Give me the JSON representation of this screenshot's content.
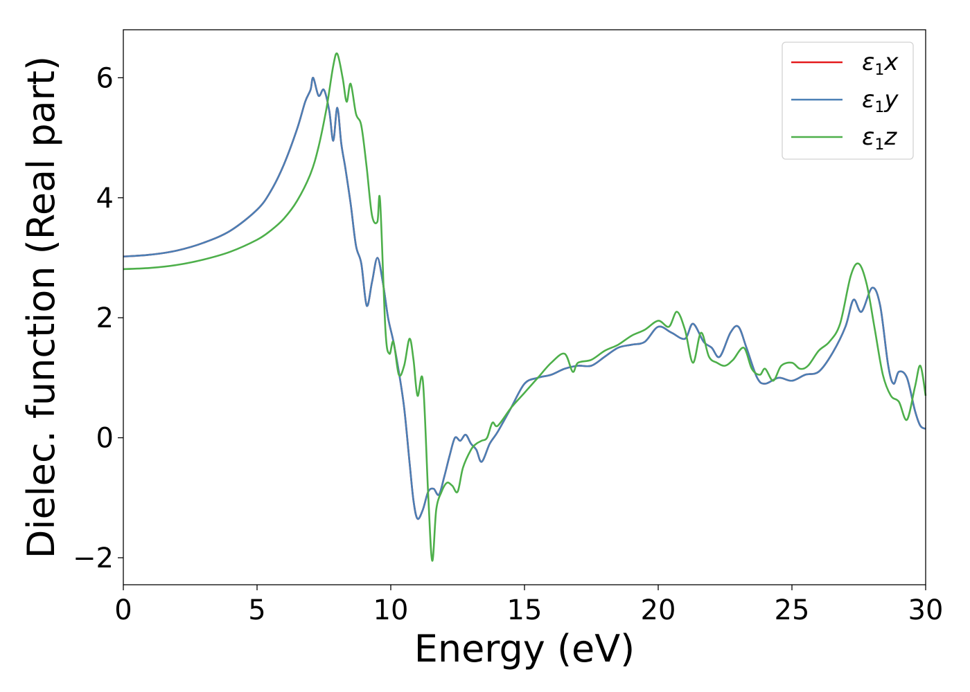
{
  "chart_data": {
    "type": "line",
    "xlabel": "Energy (eV)",
    "ylabel": "Dielec. function (Real part)",
    "xlim": [
      0,
      30
    ],
    "ylim": [
      -2.45,
      6.8
    ],
    "xticks": [
      0,
      5,
      10,
      15,
      20,
      25,
      30
    ],
    "yticks": [
      -2,
      0,
      2,
      4,
      6
    ],
    "xtick_labels": [
      "0",
      "5",
      "10",
      "15",
      "20",
      "25",
      "30"
    ],
    "ytick_labels": [
      "−2",
      "0",
      "2",
      "4",
      "6"
    ],
    "grid": false,
    "legend_position": "top-right",
    "series": [
      {
        "name": "ε1x",
        "legend": {
          "symbol": "ε",
          "sub": "1",
          "suffix": "x"
        },
        "color": "#e41a1c",
        "x": [
          0,
          1,
          2,
          3,
          4,
          5,
          5.5,
          6,
          6.5,
          6.8,
          7.0,
          7.1,
          7.3,
          7.5,
          7.7,
          7.85,
          8.0,
          8.15,
          8.3,
          8.5,
          8.7,
          8.9,
          9.1,
          9.3,
          9.5,
          9.7,
          9.9,
          10.1,
          10.3,
          10.5,
          10.7,
          10.85,
          11.0,
          11.2,
          11.4,
          11.6,
          11.8,
          12.0,
          12.2,
          12.4,
          12.6,
          12.8,
          13.0,
          13.2,
          13.4,
          13.7,
          14.0,
          14.5,
          15.0,
          15.5,
          16.0,
          16.5,
          17.0,
          17.5,
          18.0,
          18.5,
          19.0,
          19.5,
          20.0,
          20.5,
          21.0,
          21.3,
          21.7,
          22.0,
          22.3,
          22.7,
          23.0,
          23.3,
          23.7,
          24.0,
          24.5,
          25.0,
          25.5,
          26.0,
          26.5,
          27.0,
          27.3,
          27.6,
          28.0,
          28.3,
          28.6,
          28.8,
          29.0,
          29.3,
          29.6,
          29.8,
          30.0
        ],
        "y": [
          3.02,
          3.05,
          3.12,
          3.25,
          3.45,
          3.8,
          4.1,
          4.55,
          5.15,
          5.6,
          5.8,
          6.0,
          5.7,
          5.8,
          5.45,
          4.95,
          5.5,
          4.9,
          4.5,
          3.9,
          3.2,
          2.9,
          2.2,
          2.6,
          3.0,
          2.6,
          2.0,
          1.6,
          1.1,
          0.5,
          -0.4,
          -1.05,
          -1.35,
          -1.2,
          -0.9,
          -0.85,
          -0.95,
          -0.65,
          -0.3,
          0.0,
          -0.05,
          0.05,
          -0.1,
          -0.2,
          -0.4,
          -0.1,
          0.1,
          0.5,
          0.9,
          1.0,
          1.05,
          1.15,
          1.2,
          1.2,
          1.35,
          1.5,
          1.55,
          1.6,
          1.85,
          1.75,
          1.65,
          1.9,
          1.6,
          1.5,
          1.35,
          1.75,
          1.85,
          1.5,
          1.0,
          0.9,
          1.0,
          0.95,
          1.05,
          1.1,
          1.4,
          1.85,
          2.3,
          2.1,
          2.5,
          2.2,
          1.2,
          0.9,
          1.1,
          1.0,
          0.45,
          0.2,
          0.15
        ]
      },
      {
        "name": "ε1y",
        "legend": {
          "symbol": "ε",
          "sub": "1",
          "suffix": "y"
        },
        "color": "#4a7fb5",
        "x": [
          0,
          1,
          2,
          3,
          4,
          5,
          5.5,
          6,
          6.5,
          6.8,
          7.0,
          7.1,
          7.3,
          7.5,
          7.7,
          7.85,
          8.0,
          8.15,
          8.3,
          8.5,
          8.7,
          8.9,
          9.1,
          9.3,
          9.5,
          9.7,
          9.9,
          10.1,
          10.3,
          10.5,
          10.7,
          10.85,
          11.0,
          11.2,
          11.4,
          11.6,
          11.8,
          12.0,
          12.2,
          12.4,
          12.6,
          12.8,
          13.0,
          13.2,
          13.4,
          13.7,
          14.0,
          14.5,
          15.0,
          15.5,
          16.0,
          16.5,
          17.0,
          17.5,
          18.0,
          18.5,
          19.0,
          19.5,
          20.0,
          20.5,
          21.0,
          21.3,
          21.7,
          22.0,
          22.3,
          22.7,
          23.0,
          23.3,
          23.7,
          24.0,
          24.5,
          25.0,
          25.5,
          26.0,
          26.5,
          27.0,
          27.3,
          27.6,
          28.0,
          28.3,
          28.6,
          28.8,
          29.0,
          29.3,
          29.6,
          29.8,
          30.0
        ],
        "y": [
          3.02,
          3.05,
          3.12,
          3.25,
          3.45,
          3.8,
          4.1,
          4.55,
          5.15,
          5.6,
          5.8,
          6.0,
          5.7,
          5.8,
          5.45,
          4.95,
          5.5,
          4.9,
          4.5,
          3.9,
          3.2,
          2.9,
          2.2,
          2.6,
          3.0,
          2.6,
          2.0,
          1.6,
          1.1,
          0.5,
          -0.4,
          -1.05,
          -1.35,
          -1.2,
          -0.9,
          -0.85,
          -0.95,
          -0.65,
          -0.3,
          0.0,
          -0.05,
          0.05,
          -0.1,
          -0.2,
          -0.4,
          -0.1,
          0.1,
          0.5,
          0.9,
          1.0,
          1.05,
          1.15,
          1.2,
          1.2,
          1.35,
          1.5,
          1.55,
          1.6,
          1.85,
          1.75,
          1.65,
          1.9,
          1.6,
          1.5,
          1.35,
          1.75,
          1.85,
          1.5,
          1.0,
          0.9,
          1.0,
          0.95,
          1.05,
          1.1,
          1.4,
          1.85,
          2.3,
          2.1,
          2.5,
          2.2,
          1.2,
          0.9,
          1.1,
          1.0,
          0.45,
          0.2,
          0.15
        ]
      },
      {
        "name": "ε1z",
        "legend": {
          "symbol": "ε",
          "sub": "1",
          "suffix": "z"
        },
        "color": "#4daf4a",
        "x": [
          0,
          1,
          2,
          3,
          4,
          5,
          5.5,
          6,
          6.5,
          7.0,
          7.3,
          7.6,
          7.85,
          8.0,
          8.2,
          8.35,
          8.5,
          8.7,
          8.9,
          9.1,
          9.3,
          9.5,
          9.6,
          9.8,
          9.95,
          10.1,
          10.3,
          10.5,
          10.7,
          10.85,
          11.0,
          11.2,
          11.4,
          11.55,
          11.7,
          11.9,
          12.1,
          12.3,
          12.5,
          12.7,
          13.0,
          13.2,
          13.4,
          13.6,
          13.8,
          14.0,
          14.5,
          15.0,
          15.5,
          16.0,
          16.5,
          16.8,
          17.0,
          17.5,
          18.0,
          18.5,
          19.0,
          19.5,
          20.0,
          20.4,
          20.7,
          21.0,
          21.3,
          21.6,
          21.9,
          22.2,
          22.5,
          22.8,
          23.2,
          23.5,
          23.8,
          24.0,
          24.3,
          24.6,
          25.0,
          25.3,
          25.6,
          26.0,
          26.4,
          26.8,
          27.2,
          27.5,
          27.8,
          28.1,
          28.4,
          28.7,
          29.0,
          29.3,
          29.6,
          29.8,
          30.0
        ],
        "y": [
          2.81,
          2.83,
          2.88,
          2.97,
          3.1,
          3.3,
          3.45,
          3.65,
          3.95,
          4.4,
          4.85,
          5.5,
          6.2,
          6.4,
          6.0,
          5.6,
          5.9,
          5.4,
          5.2,
          4.5,
          3.7,
          3.6,
          3.95,
          1.8,
          1.4,
          1.6,
          1.05,
          1.2,
          1.65,
          1.3,
          0.7,
          0.95,
          -0.95,
          -2.05,
          -1.2,
          -0.9,
          -0.75,
          -0.8,
          -0.9,
          -0.5,
          -0.2,
          -0.1,
          -0.05,
          0.0,
          0.25,
          0.2,
          0.5,
          0.75,
          1.0,
          1.25,
          1.4,
          1.1,
          1.25,
          1.3,
          1.45,
          1.55,
          1.7,
          1.8,
          1.95,
          1.85,
          2.1,
          1.8,
          1.25,
          1.75,
          1.35,
          1.25,
          1.2,
          1.3,
          1.5,
          1.15,
          1.05,
          1.15,
          0.95,
          1.2,
          1.25,
          1.15,
          1.2,
          1.45,
          1.6,
          1.9,
          2.7,
          2.9,
          2.55,
          1.8,
          1.05,
          0.7,
          0.6,
          0.3,
          0.85,
          1.2,
          0.7
        ]
      }
    ]
  }
}
